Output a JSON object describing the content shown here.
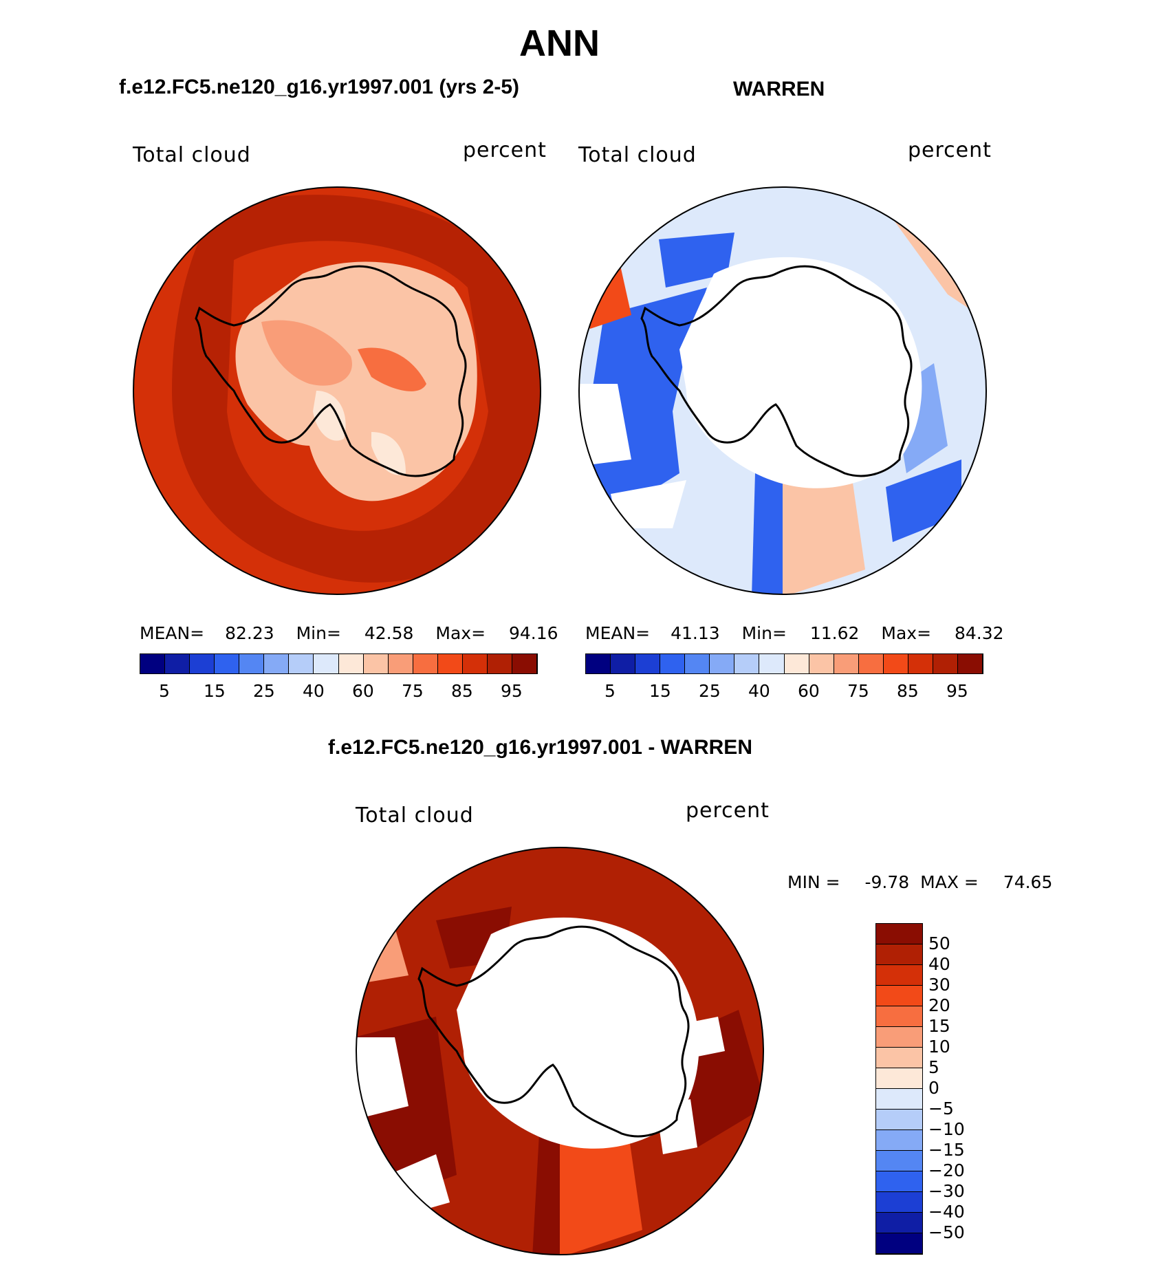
{
  "figure_title": "ANN",
  "titles": {
    "top_left": "f.e12.FC5.ne120_g16.yr1997.001 (yrs 2-5)",
    "top_right": "WARREN",
    "bottom": "f.e12.FC5.ne120_g16.yr1997.001 - WARREN"
  },
  "panels": [
    {
      "variable": "Total cloud",
      "units": "percent",
      "stats": {
        "mean_label": "MEAN=",
        "mean": "82.23",
        "min_label": "Min=",
        "min": "42.58",
        "max_label": "Max=",
        "max": "94.16"
      },
      "colorbar_ticks": [
        "5",
        "15",
        "25",
        "40",
        "60",
        "75",
        "85",
        "95"
      ]
    },
    {
      "variable": "Total cloud",
      "units": "percent",
      "stats": {
        "mean_label": "MEAN=",
        "mean": "41.13",
        "min_label": "Min=",
        "min": "11.62",
        "max_label": "Max=",
        "max": "84.32"
      },
      "colorbar_ticks": [
        "5",
        "15",
        "25",
        "40",
        "60",
        "75",
        "85",
        "95"
      ]
    },
    {
      "variable": "Total cloud",
      "units": "percent",
      "stats": {
        "min_label": "MIN =",
        "min": "-9.78",
        "max_label": "MAX =",
        "max": "74.65"
      },
      "colorbar_ticks": [
        "50",
        "40",
        "30",
        "20",
        "15",
        "10",
        "5",
        "0",
        "−5",
        "−10",
        "−15",
        "−20",
        "−30",
        "−40",
        "−50"
      ]
    }
  ],
  "colors": {
    "abs_scale": [
      "#000080",
      "#0f1ea5",
      "#1c3fd4",
      "#2f62ef",
      "#5486f3",
      "#85aaf6",
      "#b5cdf9",
      "#dde9fb",
      "#fde8d8",
      "#fbc4a6",
      "#f99d78",
      "#f76e40",
      "#f24a18",
      "#d43008",
      "#b02004",
      "#8a0d02"
    ],
    "diff_scale": [
      "#8a0d02",
      "#b02004",
      "#d43008",
      "#f24a18",
      "#f76e40",
      "#f99d78",
      "#fbc4a6",
      "#fde8d8",
      "#dde9fb",
      "#b5cdf9",
      "#85aaf6",
      "#5486f3",
      "#2f62ef",
      "#1c3fd4",
      "#0f1ea5",
      "#000080"
    ]
  },
  "chart_data": [
    {
      "type": "heatmap",
      "projection": "south polar stereographic",
      "title": "f.e12.FC5.ne120_g16.yr1997.001 (yrs 2-5)",
      "variable": "Total cloud",
      "units": "percent",
      "mean": 82.23,
      "min": 42.58,
      "max": 94.16,
      "levels": [
        5,
        10,
        15,
        20,
        25,
        30,
        40,
        50,
        60,
        70,
        75,
        80,
        85,
        90,
        95
      ]
    },
    {
      "type": "heatmap",
      "projection": "south polar stereographic",
      "title": "WARREN",
      "variable": "Total cloud",
      "units": "percent",
      "mean": 41.13,
      "min": 11.62,
      "max": 84.32,
      "levels": [
        5,
        10,
        15,
        20,
        25,
        30,
        40,
        50,
        60,
        70,
        75,
        80,
        85,
        90,
        95
      ]
    },
    {
      "type": "heatmap",
      "projection": "south polar stereographic",
      "title": "f.e12.FC5.ne120_g16.yr1997.001 - WARREN",
      "variable": "Total cloud",
      "units": "percent",
      "min": -9.78,
      "max": 74.65,
      "levels": [
        -50,
        -40,
        -30,
        -20,
        -15,
        -10,
        -5,
        0,
        5,
        10,
        15,
        20,
        30,
        40,
        50
      ]
    }
  ]
}
